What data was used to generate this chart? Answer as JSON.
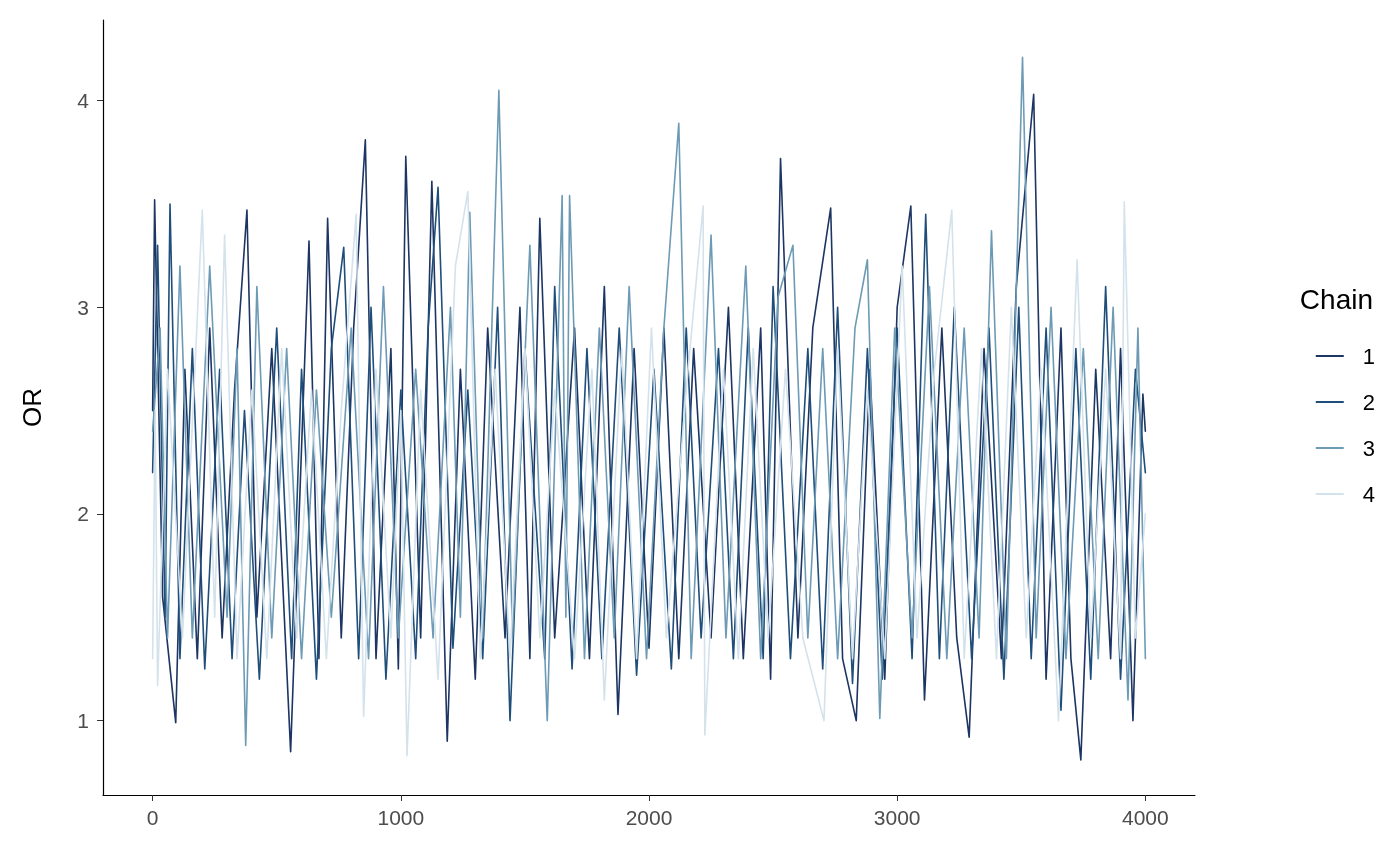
{
  "chart_data": {
    "type": "line",
    "ylabel": "OR",
    "legend_title": "Chain",
    "legend": "right",
    "grid": false,
    "marker": "none",
    "line_style": "solid",
    "xlim": [
      -200,
      4200
    ],
    "xticks": [
      0,
      1000,
      2000,
      3000,
      4000
    ],
    "ylim": [
      0.64,
      4.39
    ],
    "yticks": [
      1,
      2,
      3,
      4
    ],
    "series": [
      {
        "name": "1",
        "color": "#1c3563",
        "x": [
          0,
          8,
          40,
          93,
          130,
          180,
          230,
          280,
          330,
          380,
          420,
          480,
          556,
          630,
          670,
          705,
          760,
          810,
          857,
          900,
          960,
          990,
          1020,
          1080,
          1125,
          1187,
          1240,
          1300,
          1350,
          1420,
          1480,
          1520,
          1560,
          1620,
          1700,
          1760,
          1820,
          1875,
          1940,
          2000,
          2060,
          2120,
          2180,
          2250,
          2320,
          2380,
          2450,
          2490,
          2530,
          2600,
          2660,
          2732,
          2780,
          2835,
          2890,
          2950,
          3000,
          3055,
          3110,
          3180,
          3240,
          3290,
          3350,
          3420,
          3480,
          3550,
          3600,
          3660,
          3700,
          3740,
          3800,
          3860,
          3900,
          3950,
          3990,
          4000
        ],
        "values": [
          2.5,
          3.52,
          1.6,
          0.99,
          2.7,
          1.3,
          2.9,
          1.4,
          2.6,
          3.47,
          1.5,
          2.8,
          0.85,
          3.32,
          1.3,
          3.43,
          1.4,
          2.9,
          3.81,
          1.3,
          2.8,
          1.25,
          3.73,
          1.4,
          3.61,
          0.9,
          2.7,
          1.2,
          2.9,
          1.4,
          3.0,
          1.3,
          3.43,
          1.4,
          2.9,
          1.3,
          3.1,
          1.03,
          2.8,
          1.35,
          2.9,
          1.3,
          2.8,
          1.4,
          3.0,
          1.3,
          2.9,
          1.2,
          3.72,
          1.4,
          2.9,
          3.48,
          1.3,
          1.0,
          2.7,
          1.2,
          3.0,
          3.49,
          1.1,
          2.9,
          1.4,
          0.92,
          2.8,
          1.3,
          3.1,
          4.03,
          1.2,
          2.9,
          1.3,
          0.81,
          2.7,
          1.3,
          2.8,
          1.0,
          2.58,
          2.4
        ]
      },
      {
        "name": "2",
        "color": "#1f4e7a",
        "x": [
          0,
          20,
          50,
          70,
          110,
          160,
          210,
          270,
          320,
          370,
          430,
          500,
          560,
          600,
          660,
          720,
          770,
          830,
          880,
          940,
          1000,
          1060,
          1110,
          1150,
          1210,
          1270,
          1330,
          1390,
          1440,
          1500,
          1580,
          1620,
          1690,
          1750,
          1810,
          1880,
          1950,
          2020,
          2090,
          2150,
          2210,
          2280,
          2340,
          2400,
          2460,
          2500,
          2570,
          2640,
          2700,
          2760,
          2820,
          2880,
          2940,
          3000,
          3060,
          3115,
          3170,
          3230,
          3300,
          3370,
          3430,
          3490,
          3540,
          3600,
          3660,
          3720,
          3780,
          3840,
          3900,
          3960,
          4000
        ],
        "values": [
          2.2,
          3.3,
          1.5,
          3.5,
          1.3,
          2.8,
          1.25,
          2.7,
          1.3,
          2.5,
          1.2,
          2.9,
          1.3,
          2.7,
          1.2,
          2.8,
          3.29,
          1.3,
          3.0,
          1.2,
          2.6,
          1.3,
          2.9,
          3.58,
          1.35,
          2.6,
          1.3,
          3.0,
          1.0,
          2.8,
          1.3,
          3.1,
          1.25,
          2.8,
          1.3,
          2.9,
          1.22,
          2.7,
          1.25,
          2.9,
          1.4,
          2.8,
          1.3,
          2.9,
          1.3,
          3.1,
          1.3,
          2.8,
          1.25,
          3.0,
          1.18,
          2.8,
          1.2,
          2.9,
          1.3,
          3.45,
          1.3,
          3.0,
          1.3,
          2.9,
          1.2,
          3.0,
          1.3,
          2.9,
          1.05,
          2.8,
          1.2,
          3.1,
          1.2,
          2.7,
          2.2
        ]
      },
      {
        "name": "3",
        "color": "#6d9ab5",
        "x": [
          0,
          30,
          60,
          110,
          160,
          230,
          300,
          340,
          375,
          420,
          480,
          540,
          600,
          660,
          720,
          800,
          870,
          930,
          990,
          1060,
          1130,
          1200,
          1240,
          1278,
          1330,
          1395,
          1450,
          1520,
          1590,
          1650,
          1665,
          1680,
          1740,
          1800,
          1860,
          1920,
          1990,
          2060,
          2120,
          2170,
          2250,
          2310,
          2390,
          2450,
          2520,
          2580,
          2640,
          2700,
          2760,
          2830,
          2880,
          2930,
          2990,
          3060,
          3130,
          3200,
          3270,
          3330,
          3380,
          3440,
          3505,
          3560,
          3620,
          3680,
          3750,
          3810,
          3870,
          3930,
          3970,
          4000
        ],
        "values": [
          2.4,
          2.9,
          1.4,
          3.2,
          1.4,
          3.2,
          1.5,
          2.8,
          0.88,
          3.1,
          1.4,
          2.8,
          1.3,
          2.6,
          1.5,
          2.9,
          1.3,
          3.1,
          1.4,
          2.7,
          1.4,
          3.0,
          1.5,
          3.46,
          1.4,
          4.05,
          1.4,
          3.3,
          1.0,
          3.54,
          1.5,
          3.54,
          1.3,
          2.9,
          1.4,
          3.1,
          1.3,
          2.9,
          3.89,
          1.3,
          3.35,
          1.4,
          3.2,
          1.3,
          3.05,
          3.3,
          1.4,
          2.8,
          1.3,
          2.9,
          3.23,
          1.01,
          2.9,
          1.4,
          3.1,
          1.3,
          2.9,
          1.4,
          3.37,
          1.3,
          4.21,
          1.4,
          3.0,
          1.3,
          2.8,
          1.3,
          3.0,
          1.1,
          2.9,
          1.3
        ]
      },
      {
        "name": "4",
        "color": "#d4e2ec",
        "x": [
          0,
          10,
          20,
          60,
          120,
          200,
          250,
          290,
          340,
          400,
          460,
          520,
          580,
          640,
          700,
          760,
          820,
          850,
          900,
          960,
          1000,
          1025,
          1080,
          1150,
          1220,
          1270,
          1320,
          1380,
          1440,
          1500,
          1560,
          1620,
          1700,
          1770,
          1820,
          1890,
          1950,
          2010,
          2070,
          2150,
          2218,
          2225,
          2300,
          2360,
          2420,
          2480,
          2550,
          2620,
          2705,
          2760,
          2820,
          2880,
          2950,
          3020,
          3080,
          3150,
          3220,
          3270,
          3340,
          3400,
          3460,
          3520,
          3580,
          3650,
          3725,
          3780,
          3840,
          3900,
          3915,
          3960,
          4000
        ],
        "values": [
          1.3,
          2.5,
          1.17,
          2.7,
          1.4,
          3.47,
          1.5,
          3.35,
          1.3,
          2.6,
          1.3,
          2.8,
          1.4,
          2.6,
          1.3,
          2.5,
          3.45,
          1.02,
          2.7,
          1.4,
          2.5,
          0.83,
          2.6,
          1.2,
          3.2,
          3.56,
          1.3,
          2.7,
          1.3,
          2.8,
          1.4,
          2.6,
          1.3,
          2.7,
          1.1,
          2.8,
          1.3,
          2.9,
          1.4,
          2.6,
          3.49,
          0.93,
          2.7,
          1.3,
          2.8,
          1.4,
          2.7,
          1.4,
          1.0,
          2.8,
          1.3,
          2.6,
          1.3,
          3.2,
          1.4,
          2.7,
          3.47,
          1.3,
          2.8,
          1.3,
          3.0,
          1.4,
          2.7,
          1.0,
          3.23,
          1.4,
          2.7,
          1.3,
          3.51,
          1.4,
          2.0
        ]
      }
    ]
  }
}
